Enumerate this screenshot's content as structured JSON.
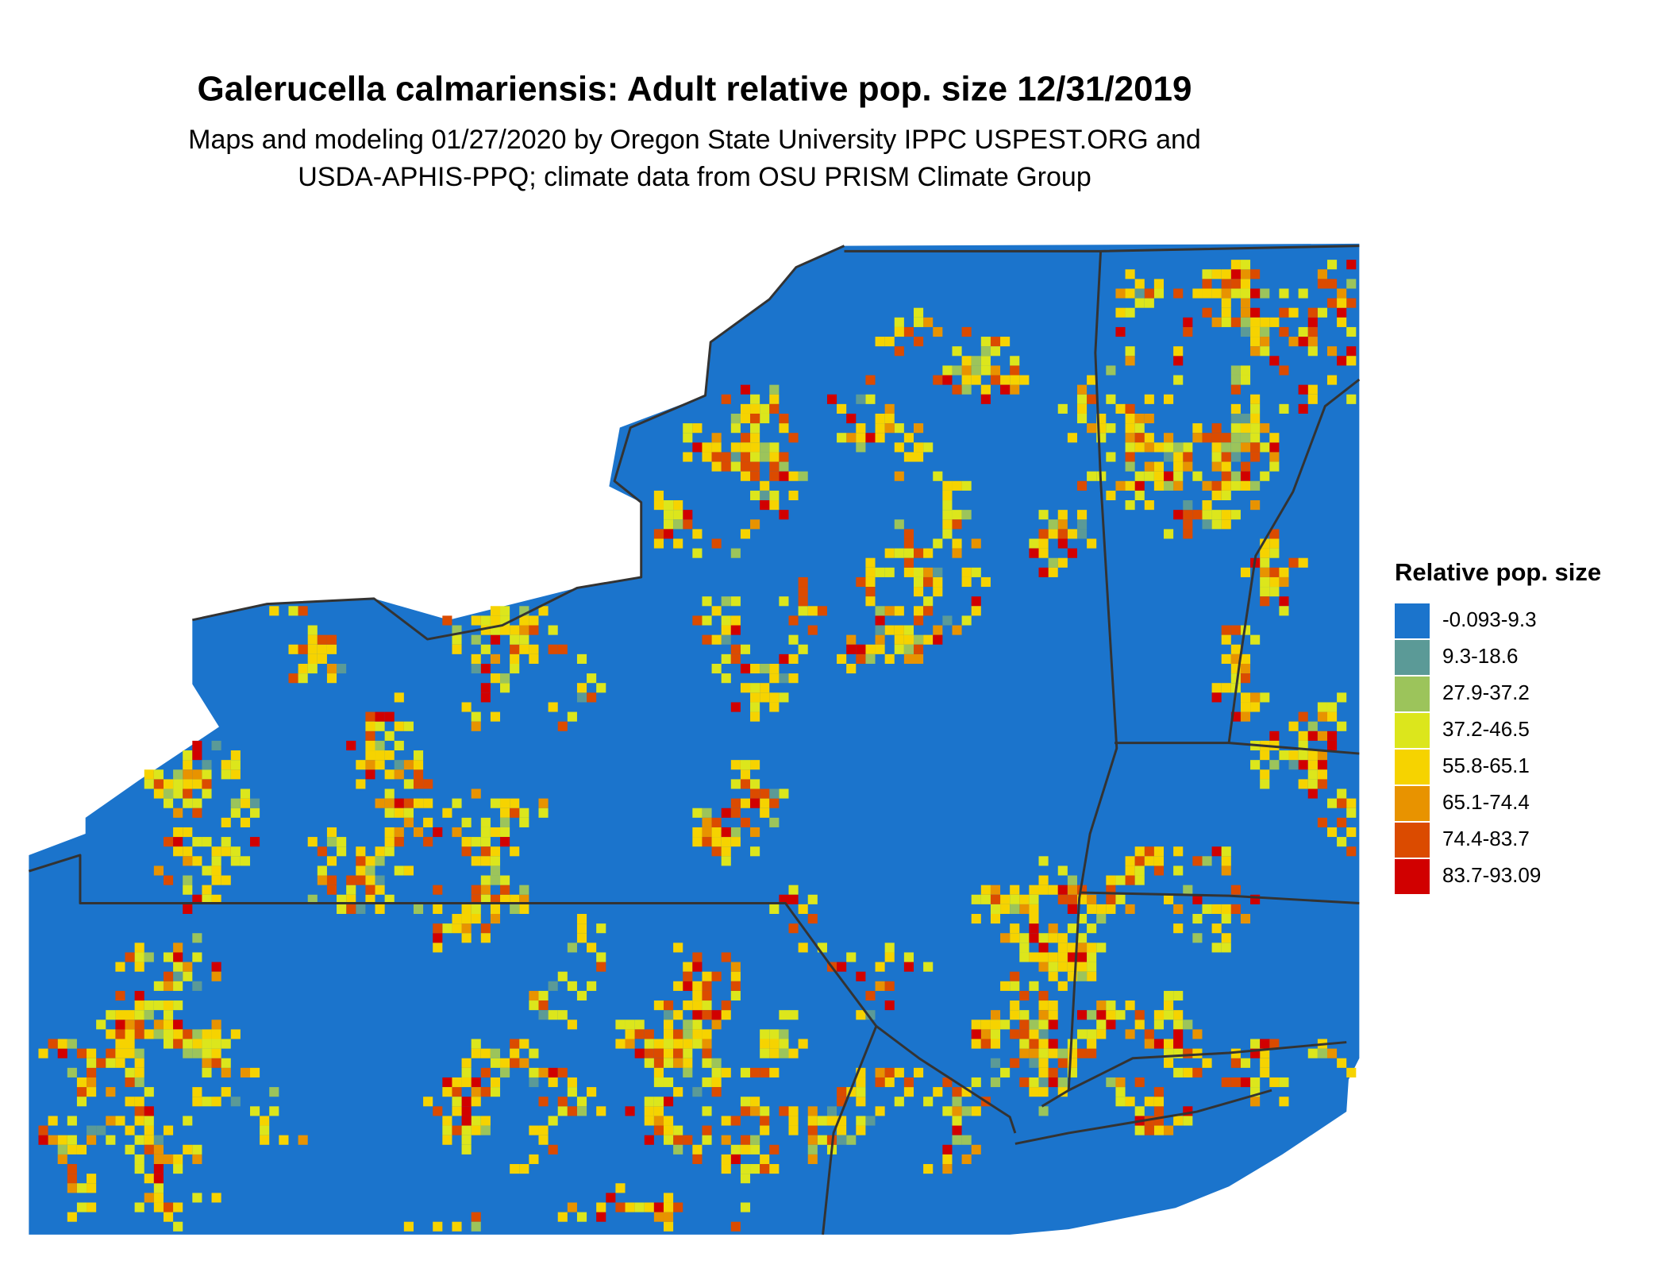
{
  "title": "Galerucella calmariensis: Adult relative pop. size 12/31/2019",
  "subtitle": [
    "Maps and modeling 01/27/2020 by Oregon State University IPPC USPEST.ORG and",
    "USDA-APHIS-PPQ; climate data from OSU PRISM Climate Group"
  ],
  "legend": {
    "title": "Relative pop. size",
    "items": [
      {
        "label": "-0.093-9.3",
        "color": "#1b74cc"
      },
      {
        "label": "9.3-18.6",
        "color": "#5b9a97"
      },
      {
        "label": "27.9-37.2",
        "color": "#9cc45b"
      },
      {
        "label": "37.2-46.5",
        "color": "#dce61c"
      },
      {
        "label": "55.8-65.1",
        "color": "#f6d300"
      },
      {
        "label": "65.1-74.4",
        "color": "#e89300"
      },
      {
        "label": "74.4-83.7",
        "color": "#db4b00"
      },
      {
        "label": "83.7-93.09",
        "color": "#d10000"
      }
    ]
  }
}
